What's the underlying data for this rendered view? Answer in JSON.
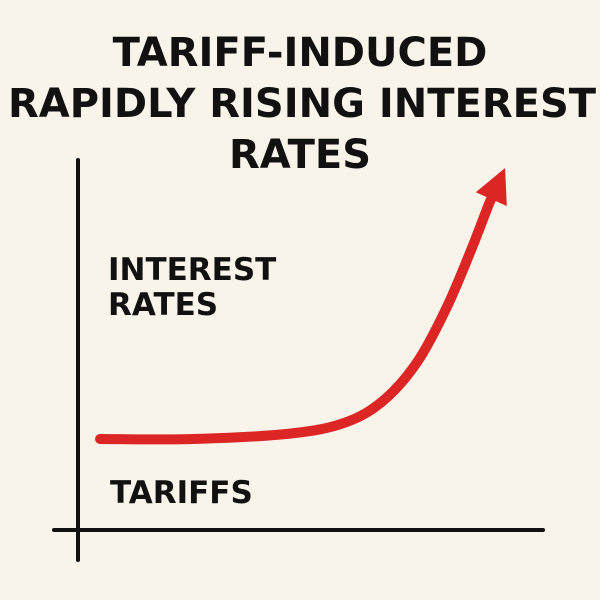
{
  "chart_data": {
    "type": "line",
    "title": {
      "line1": "TARIFF-INDUCED",
      "line2": "RAPIDLY RISING INTEREST",
      "line3": "RATES"
    },
    "ylabel": {
      "line1": "INTEREST",
      "line2": "RATES"
    },
    "xlabel": "TARIFFS",
    "series": [
      {
        "values": [
          {
            "x": 0.0,
            "y": 0.0
          },
          {
            "x": 0.22,
            "y": 0.0
          },
          {
            "x": 0.45,
            "y": 0.02
          },
          {
            "x": 0.58,
            "y": 0.06
          },
          {
            "x": 0.67,
            "y": 0.14
          },
          {
            "x": 0.75,
            "y": 0.28
          },
          {
            "x": 0.82,
            "y": 0.48
          },
          {
            "x": 0.88,
            "y": 0.7
          },
          {
            "x": 0.92,
            "y": 0.86
          },
          {
            "x": 0.96,
            "y": 1.0
          }
        ],
        "color": "#dc2626",
        "arrow_end": true
      }
    ],
    "xlim": [
      0,
      1
    ],
    "ylim": [
      0,
      1
    ],
    "axis_color": "#111111",
    "grid": false,
    "legend": "none"
  }
}
